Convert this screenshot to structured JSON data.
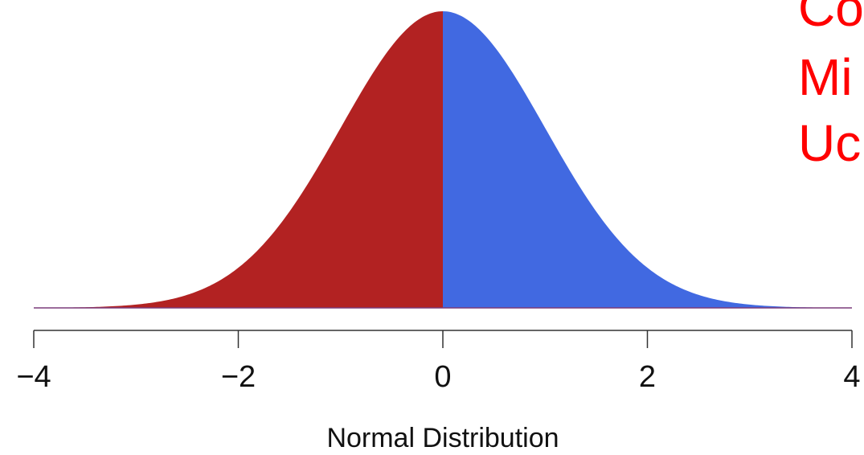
{
  "chart_data": {
    "type": "area",
    "title": "",
    "xlabel": "Normal Distribution",
    "ylabel": "",
    "xlim": [
      -4,
      4
    ],
    "x_ticks": [
      -4,
      -2,
      0,
      2,
      4
    ],
    "x_tick_labels": [
      "−4",
      "−2",
      "0",
      "2",
      "4"
    ],
    "curve": "standard normal density",
    "mean": 0,
    "sd": 1,
    "series": [
      {
        "x_range": [
          -4,
          0
        ],
        "color": "#B22222"
      },
      {
        "x_range": [
          0,
          4
        ],
        "color": "#4169E1"
      }
    ]
  },
  "side_text": {
    "lines": [
      "Co",
      "Mi",
      "Uc"
    ],
    "color": "#FF0000"
  }
}
